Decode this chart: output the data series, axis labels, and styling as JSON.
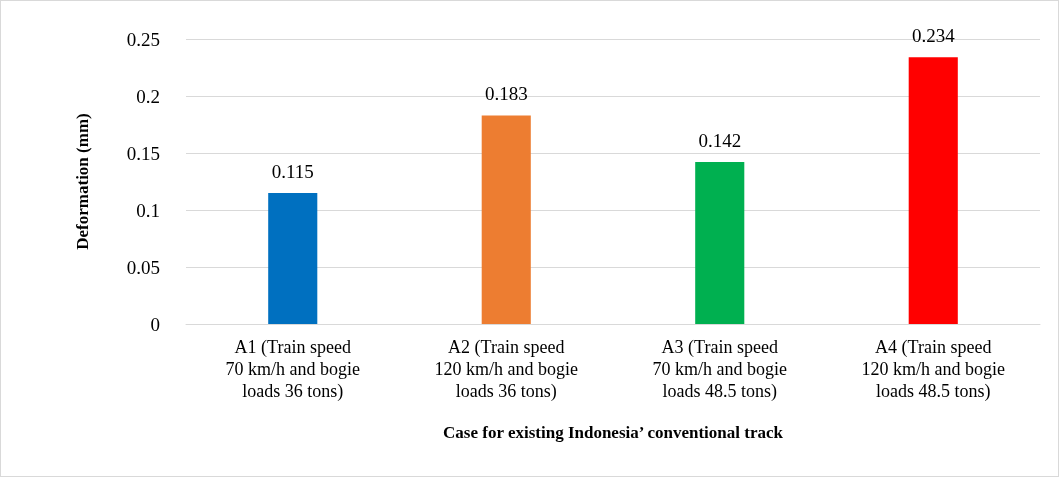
{
  "chart_data": {
    "type": "bar",
    "categories": [
      "A1 (Train speed\n70 km/h and bogie\nloads 36 tons)",
      "A2 (Train speed\n120 km/h and bogie\nloads 36 tons)",
      "A3 (Train speed\n70 km/h and bogie\nloads 48.5 tons)",
      "A4 (Train speed\n120 km/h and bogie\nloads 48.5 tons)"
    ],
    "values": [
      0.115,
      0.183,
      0.142,
      0.234
    ],
    "colors": [
      "#0070c0",
      "#ed7d31",
      "#00b050",
      "#ff0000"
    ],
    "xlabel": "Case for existing Indonesia’ conventional track",
    "ylabel": "Deformation (mm)",
    "ylim": [
      0,
      0.25
    ],
    "yticks": [
      0,
      0.05,
      0.1,
      0.15,
      0.2,
      0.25
    ],
    "grid": "y",
    "data_labels": true
  }
}
